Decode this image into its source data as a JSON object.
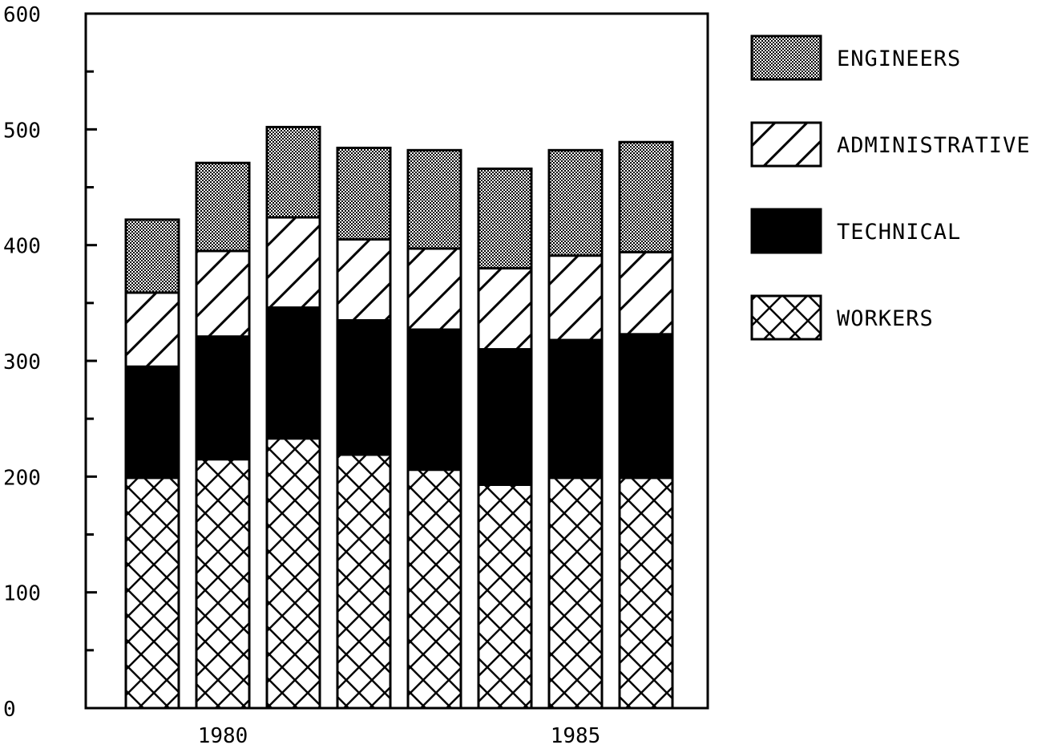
{
  "chart_data": {
    "type": "bar",
    "stacked": true,
    "x": [
      1979,
      1980,
      1981,
      1982,
      1983,
      1984,
      1985,
      1986
    ],
    "x_tick_labels": [
      {
        "x": 1980,
        "label": "1980"
      },
      {
        "x": 1985,
        "label": "1985"
      }
    ],
    "y_ticks": [
      0,
      100,
      200,
      300,
      400,
      500,
      600
    ],
    "y_tick_labels": [
      "0",
      "100",
      "200",
      "300",
      "400",
      "500",
      "600"
    ],
    "ylim": [
      0,
      600
    ],
    "title": "",
    "xlabel": "",
    "ylabel": "",
    "legend_position": "right",
    "grid": false,
    "series": [
      {
        "name": "WORKERS",
        "pattern": "crosshatch",
        "values": [
          199,
          215,
          233,
          219,
          206,
          193,
          199,
          199
        ]
      },
      {
        "name": "TECHNICAL",
        "pattern": "solid",
        "values": [
          96,
          106,
          113,
          116,
          121,
          117,
          119,
          124
        ]
      },
      {
        "name": "ADMINISTRATIVE",
        "pattern": "diagonal",
        "values": [
          64,
          74,
          78,
          70,
          70,
          70,
          73,
          71
        ]
      },
      {
        "name": "ENGINEERS",
        "pattern": "dots",
        "values": [
          63,
          76,
          78,
          79,
          85,
          86,
          91,
          95
        ]
      }
    ],
    "legend_order": [
      "ENGINEERS",
      "ADMINISTRATIVE",
      "TECHNICAL",
      "WORKERS"
    ],
    "colors": {
      "ink": "#000000",
      "background": "#ffffff"
    }
  }
}
